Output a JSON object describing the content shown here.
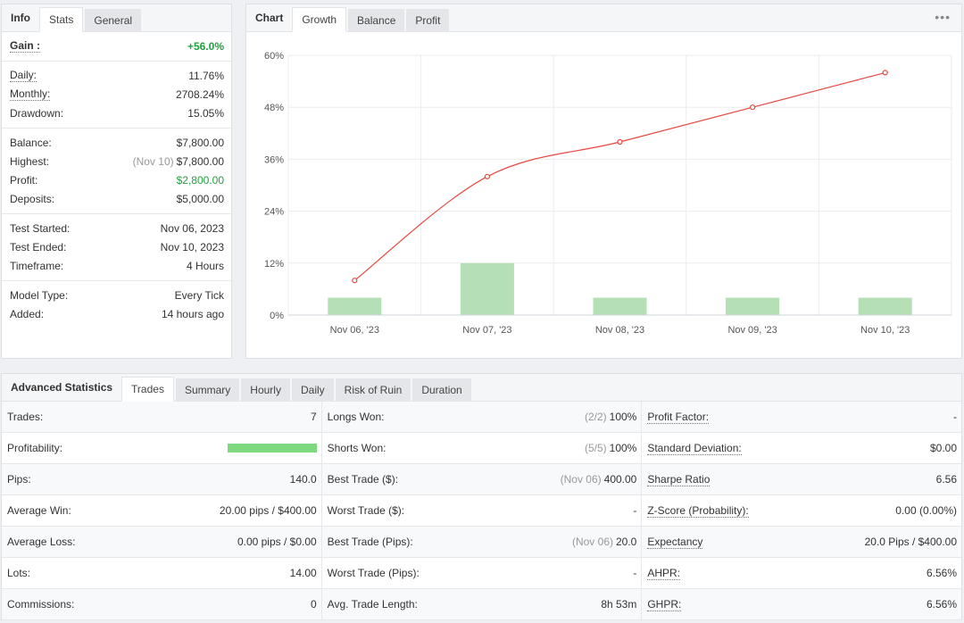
{
  "info_tabs": {
    "title": "Info",
    "items": [
      "Stats",
      "General"
    ]
  },
  "info": {
    "gain": {
      "label": "Gain :",
      "value": "+56.0%"
    },
    "daily": {
      "label": "Daily:",
      "value": "11.76%"
    },
    "monthly": {
      "label": "Monthly:",
      "value": "2708.24%"
    },
    "drawdown": {
      "label": "Drawdown:",
      "value": "15.05%"
    },
    "balance": {
      "label": "Balance:",
      "value": "$7,800.00"
    },
    "highest": {
      "label": "Highest:",
      "note": "(Nov 10)",
      "value": "$7,800.00"
    },
    "profit": {
      "label": "Profit:",
      "value": "$2,800.00"
    },
    "deposits": {
      "label": "Deposits:",
      "value": "$5,000.00"
    },
    "test_started": {
      "label": "Test Started:",
      "value": "Nov 06, 2023"
    },
    "test_ended": {
      "label": "Test Ended:",
      "value": "Nov 10, 2023"
    },
    "timeframe": {
      "label": "Timeframe:",
      "value": "4 Hours"
    },
    "model_type": {
      "label": "Model Type:",
      "value": "Every Tick"
    },
    "added": {
      "label": "Added:",
      "value": "14 hours ago"
    }
  },
  "chart_tabs": {
    "title": "Chart",
    "items": [
      "Growth",
      "Balance",
      "Profit"
    ],
    "menu_icon": "more-dots-icon"
  },
  "chart_data": {
    "type": "line",
    "categories": [
      "Nov 06, '23",
      "Nov 07, '23",
      "Nov 08, '23",
      "Nov 09, '23",
      "Nov 10, '23"
    ],
    "y_ticks": [
      "60%",
      "48%",
      "36%",
      "24%",
      "12%",
      "0%"
    ],
    "ylim": [
      0,
      60
    ],
    "series": [
      {
        "values": [
          8,
          32,
          40,
          48,
          56
        ],
        "color": "#e8473f"
      },
      {
        "type": "bar",
        "values": [
          4,
          12,
          4,
          4,
          4
        ],
        "color": "#b5e0b5"
      }
    ],
    "grid": true
  },
  "adv_tabs": {
    "title": "Advanced Statistics",
    "items": [
      "Trades",
      "Summary",
      "Hourly",
      "Daily",
      "Risk of Ruin",
      "Duration"
    ]
  },
  "adv": {
    "col1": [
      {
        "label": "Trades:",
        "value": "7"
      },
      {
        "label": "Profitability:",
        "value": ""
      },
      {
        "label": "Pips:",
        "value": "140.0"
      },
      {
        "label": "Average Win:",
        "value": "20.00 pips / $400.00"
      },
      {
        "label": "Average Loss:",
        "value": "0.00 pips / $0.00"
      },
      {
        "label": "Lots:",
        "value": "14.00"
      },
      {
        "label": "Commissions:",
        "value": "0"
      }
    ],
    "col2": [
      {
        "label": "Longs Won:",
        "note": "(2/2)",
        "value": "100%"
      },
      {
        "label": "Shorts Won:",
        "note": "(5/5)",
        "value": "100%"
      },
      {
        "label": "Best Trade ($):",
        "note": "(Nov 06)",
        "value": "400.00"
      },
      {
        "label": "Worst Trade ($):",
        "note": "",
        "value": "-"
      },
      {
        "label": "Best Trade (Pips):",
        "note": "(Nov 06)",
        "value": "20.0"
      },
      {
        "label": "Worst Trade (Pips):",
        "note": "",
        "value": "-"
      },
      {
        "label": "Avg. Trade Length:",
        "note": "",
        "value": "8h 53m"
      }
    ],
    "col3": [
      {
        "label": "Profit Factor:",
        "value": "-"
      },
      {
        "label": "Standard Deviation:",
        "value": "$0.00"
      },
      {
        "label": "Sharpe Ratio",
        "value": "6.56"
      },
      {
        "label": "Z-Score (Probability):",
        "value": "0.00 (0.00%)"
      },
      {
        "label": "Expectancy",
        "value": "20.0 Pips / $400.00"
      },
      {
        "label": "AHPR:",
        "value": "6.56%"
      },
      {
        "label": "GHPR:",
        "value": "6.56%"
      }
    ]
  }
}
